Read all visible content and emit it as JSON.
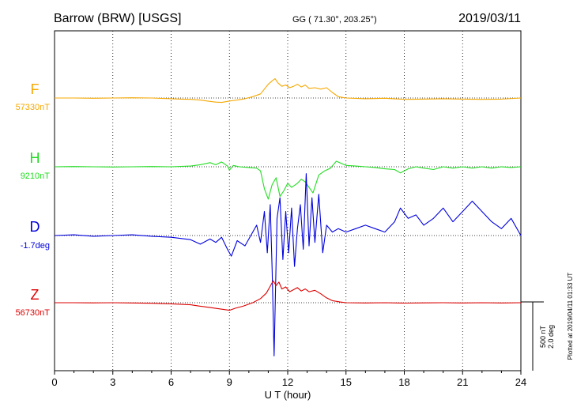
{
  "header": {
    "station": "Barrow (BRW)  [USGS]",
    "coords": "GG ( 71.30°, 203.25°)",
    "date": "2019/03/11"
  },
  "footer": {
    "plotted": "Plotted at 2019/04/11 01:33 UT"
  },
  "scale_bar": {
    "label_nt": "500 nT",
    "label_deg": "2.0 deg"
  },
  "chart_data": {
    "type": "line",
    "title": "Barrow (BRW)  [USGS]",
    "xlabel": "U T (hour)",
    "xlim": [
      0,
      24
    ],
    "xticks": [
      0,
      3,
      6,
      9,
      12,
      15,
      18,
      21,
      24
    ],
    "grid": true,
    "series": [
      {
        "name": "F",
        "baseline_label": "57330nT",
        "color": "#f5a800",
        "unit": "nT",
        "baseline": 57330,
        "x": [
          0,
          1,
          2,
          3,
          4,
          5,
          6,
          6.5,
          7,
          7.5,
          8,
          8.3,
          8.6,
          8.9,
          9.1,
          9.4,
          9.8,
          10.2,
          10.6,
          10.8,
          11,
          11.2,
          11.35,
          11.5,
          11.7,
          11.9,
          12.1,
          12.3,
          12.5,
          12.7,
          12.9,
          13.1,
          13.4,
          13.7,
          14,
          14.3,
          14.6,
          15,
          16,
          17,
          18,
          19,
          20,
          21,
          22,
          23,
          24
        ],
        "values": [
          57330,
          57330,
          57328,
          57330,
          57332,
          57330,
          57325,
          57322,
          57320,
          57315,
          57305,
          57300,
          57298,
          57305,
          57310,
          57315,
          57325,
          57340,
          57360,
          57395,
          57430,
          57455,
          57470,
          57440,
          57415,
          57425,
          57405,
          57415,
          57430,
          57410,
          57425,
          57400,
          57405,
          57395,
          57405,
          57370,
          57340,
          57330,
          57325,
          57328,
          57320,
          57322,
          57325,
          57322,
          57320,
          57322,
          57330
        ]
      },
      {
        "name": "H",
        "baseline_label": "9210nT",
        "color": "#22dd22",
        "unit": "nT",
        "baseline": 9210,
        "x": [
          0,
          1,
          2,
          3,
          4,
          5,
          6,
          7,
          7.5,
          8,
          8.3,
          8.6,
          8.9,
          9.0,
          9.2,
          9.5,
          10,
          10.4,
          10.6,
          10.8,
          11.0,
          11.2,
          11.4,
          11.6,
          11.8,
          12.0,
          12.2,
          12.5,
          12.7,
          12.9,
          13.1,
          13.3,
          13.6,
          13.9,
          14.2,
          14.5,
          15,
          15.5,
          16,
          16.5,
          17,
          17.5,
          17.8,
          18.2,
          18.6,
          19,
          19.5,
          20,
          20.5,
          21,
          21.5,
          22,
          22.5,
          23,
          23.5,
          24
        ],
        "values": [
          9210,
          9212,
          9210,
          9208,
          9210,
          9212,
          9210,
          9215,
          9225,
          9240,
          9225,
          9245,
          9215,
          9185,
          9220,
          9210,
          9205,
          9200,
          9180,
          9050,
          8975,
          9080,
          9130,
          8995,
          9035,
          9090,
          9060,
          9090,
          9120,
          9100,
          9060,
          9020,
          9150,
          9180,
          9200,
          9250,
          9220,
          9215,
          9210,
          9205,
          9195,
          9190,
          9165,
          9195,
          9210,
          9200,
          9190,
          9210,
          9200,
          9210,
          9200,
          9210,
          9200,
          9210,
          9205,
          9210
        ]
      },
      {
        "name": "D",
        "baseline_label": "-1.7deg",
        "color": "#0000dd",
        "unit": "deg",
        "baseline": -1.7,
        "x": [
          0,
          1,
          2,
          3,
          4,
          5,
          6,
          7,
          7.5,
          8,
          8.3,
          8.6,
          8.9,
          9.1,
          9.4,
          9.8,
          10.1,
          10.4,
          10.6,
          10.8,
          10.95,
          11.1,
          11.2,
          11.3,
          11.45,
          11.6,
          11.75,
          11.9,
          12.05,
          12.2,
          12.35,
          12.5,
          12.65,
          12.8,
          12.95,
          13.1,
          13.25,
          13.4,
          13.6,
          13.8,
          14.0,
          14.3,
          14.6,
          15,
          15.5,
          16,
          16.5,
          17,
          17.5,
          17.8,
          18.2,
          18.6,
          19,
          19.5,
          20,
          20.5,
          21,
          21.5,
          22,
          22.5,
          23,
          23.5,
          24
        ],
        "values": [
          -1.7,
          -1.68,
          -1.72,
          -1.7,
          -1.68,
          -1.72,
          -1.75,
          -1.82,
          -1.95,
          -1.8,
          -1.9,
          -1.75,
          -2.1,
          -2.3,
          -1.85,
          -2.0,
          -1.7,
          -1.4,
          -1.9,
          -1.0,
          -2.2,
          -0.8,
          -2.7,
          -5.2,
          -1.2,
          -0.6,
          -2.4,
          -1.0,
          -2.2,
          -0.9,
          -2.6,
          -1.5,
          -0.8,
          -2.1,
          0.1,
          -2.0,
          -0.6,
          -1.9,
          -0.5,
          -2.2,
          -1.4,
          -1.6,
          -1.5,
          -1.6,
          -1.5,
          -1.4,
          -1.5,
          -1.6,
          -1.3,
          -0.9,
          -1.2,
          -1.1,
          -1.4,
          -1.2,
          -0.9,
          -1.3,
          -1.0,
          -0.7,
          -1.0,
          -1.3,
          -1.5,
          -1.2,
          -1.7
        ]
      },
      {
        "name": "Z",
        "baseline_label": "56730nT",
        "color": "#dd0000",
        "unit": "nT",
        "baseline": 56730,
        "x": [
          0,
          1,
          2,
          3,
          4,
          5,
          6,
          7,
          7.5,
          8,
          8.5,
          9.0,
          9.3,
          9.7,
          10.2,
          10.6,
          10.9,
          11.1,
          11.25,
          11.4,
          11.55,
          11.7,
          11.9,
          12.1,
          12.3,
          12.5,
          12.7,
          12.9,
          13.1,
          13.4,
          13.7,
          14.0,
          14.3,
          14.7,
          15,
          16,
          17,
          18,
          19,
          20,
          21,
          22,
          23,
          24
        ],
        "values": [
          56730,
          56730,
          56729,
          56730,
          56728,
          56726,
          56722,
          56715,
          56705,
          56695,
          56685,
          56675,
          56690,
          56705,
          56730,
          56760,
          56800,
          56850,
          56890,
          56855,
          56880,
          56830,
          56845,
          56810,
          56825,
          56840,
          56815,
          56830,
          56810,
          56820,
          56795,
          56765,
          56745,
          56735,
          56730,
          56728,
          56730,
          56727,
          56729,
          56730,
          56728,
          56730,
          56728,
          56730
        ]
      }
    ]
  }
}
